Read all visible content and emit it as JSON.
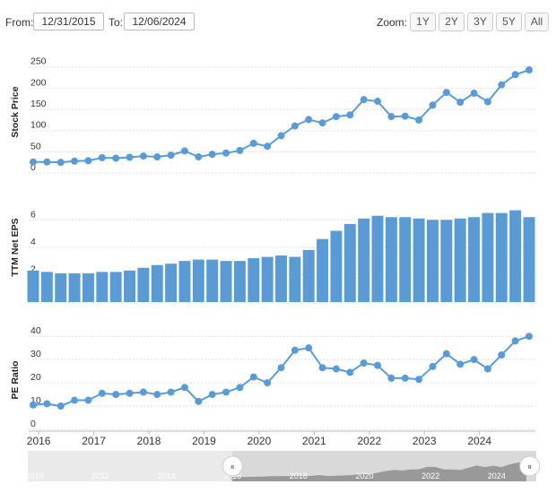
{
  "toolbar": {
    "from_label": "From:",
    "from_value": "12/31/2015",
    "to_label": "To:",
    "to_value": "12/06/2024",
    "zoom_label": "Zoom:",
    "zoom_buttons": [
      "1Y",
      "2Y",
      "3Y",
      "5Y",
      "All"
    ]
  },
  "colors": {
    "series": "#5b9bd5",
    "grid": "#dddddd",
    "navigator_fill": "#d9d9d9",
    "navigator_series": "#888888"
  },
  "chart_data": [
    {
      "type": "line",
      "ylabel": "Stock Price",
      "ylim": [
        0,
        260
      ],
      "yticks": [
        0,
        50,
        100,
        150,
        200,
        250
      ],
      "x": [
        2015.9,
        2016.15,
        2016.4,
        2016.65,
        2016.9,
        2017.15,
        2017.4,
        2017.65,
        2017.9,
        2018.15,
        2018.4,
        2018.65,
        2018.9,
        2019.15,
        2019.4,
        2019.65,
        2019.9,
        2020.15,
        2020.4,
        2020.65,
        2020.9,
        2021.15,
        2021.4,
        2021.65,
        2021.9,
        2022.15,
        2022.4,
        2022.65,
        2022.9,
        2023.15,
        2023.4,
        2023.65,
        2023.9,
        2024.15,
        2024.4,
        2024.65,
        2024.9
      ],
      "values": [
        26,
        26,
        25,
        28,
        29,
        36,
        35,
        37,
        40,
        38,
        42,
        52,
        38,
        44,
        47,
        53,
        70,
        63,
        88,
        111,
        126,
        118,
        133,
        137,
        173,
        169,
        133,
        134,
        125,
        160,
        190,
        167,
        188,
        168,
        208,
        232,
        243
      ]
    },
    {
      "type": "bar",
      "ylabel": "TTM Net EPS",
      "ylim": [
        0,
        7
      ],
      "yticks": [
        0,
        2,
        4,
        6
      ],
      "x": [
        2015.9,
        2016.15,
        2016.4,
        2016.65,
        2016.9,
        2017.15,
        2017.4,
        2017.65,
        2017.9,
        2018.15,
        2018.4,
        2018.65,
        2018.9,
        2019.15,
        2019.4,
        2019.65,
        2019.9,
        2020.15,
        2020.4,
        2020.65,
        2020.9,
        2021.15,
        2021.4,
        2021.65,
        2021.9,
        2022.15,
        2022.4,
        2022.65,
        2022.9,
        2023.15,
        2023.4,
        2023.65,
        2023.9,
        2024.15,
        2024.4,
        2024.65,
        2024.9
      ],
      "values": [
        2.3,
        2.2,
        2.1,
        2.1,
        2.1,
        2.2,
        2.2,
        2.3,
        2.5,
        2.7,
        2.8,
        3.0,
        3.1,
        3.1,
        3.0,
        3.0,
        3.2,
        3.3,
        3.4,
        3.3,
        3.8,
        4.6,
        5.2,
        5.7,
        6.1,
        6.3,
        6.2,
        6.2,
        6.1,
        6.0,
        6.0,
        6.1,
        6.2,
        6.5,
        6.5,
        6.7,
        6.2
      ]
    },
    {
      "type": "line",
      "ylabel": "PE Ratio",
      "ylim": [
        0,
        42
      ],
      "yticks": [
        0,
        10,
        20,
        30,
        40
      ],
      "x": [
        2015.9,
        2016.15,
        2016.4,
        2016.65,
        2016.9,
        2017.15,
        2017.4,
        2017.65,
        2017.9,
        2018.15,
        2018.4,
        2018.65,
        2018.9,
        2019.15,
        2019.4,
        2019.65,
        2019.9,
        2020.15,
        2020.4,
        2020.65,
        2020.9,
        2021.15,
        2021.4,
        2021.65,
        2021.9,
        2022.15,
        2022.4,
        2022.65,
        2022.9,
        2023.15,
        2023.4,
        2023.65,
        2023.9,
        2024.15,
        2024.4,
        2024.65,
        2024.9
      ],
      "values": [
        10.5,
        11,
        10,
        12.5,
        12.5,
        15.5,
        15,
        15.5,
        16,
        15,
        16,
        18,
        12,
        15,
        16,
        18,
        22.5,
        20,
        26.5,
        34,
        35,
        26.5,
        26,
        24.5,
        28.5,
        27.5,
        22,
        22,
        21.5,
        27,
        32.5,
        28,
        30,
        26,
        32,
        38,
        40
      ]
    }
  ],
  "x_axis": {
    "ticks": [
      2016,
      2017,
      2018,
      2019,
      2020,
      2021,
      2022,
      2023,
      2024
    ],
    "range": [
      2015.9,
      2024.9
    ]
  },
  "navigator": {
    "ticks": [
      "2010",
      "2012",
      "2014",
      "2016",
      "2018",
      "2020",
      "2022",
      "2024"
    ],
    "range": [
      2009.8,
      2025.2
    ],
    "selected": [
      2016.0,
      2025.0
    ],
    "handle_glyph": "⏸"
  }
}
